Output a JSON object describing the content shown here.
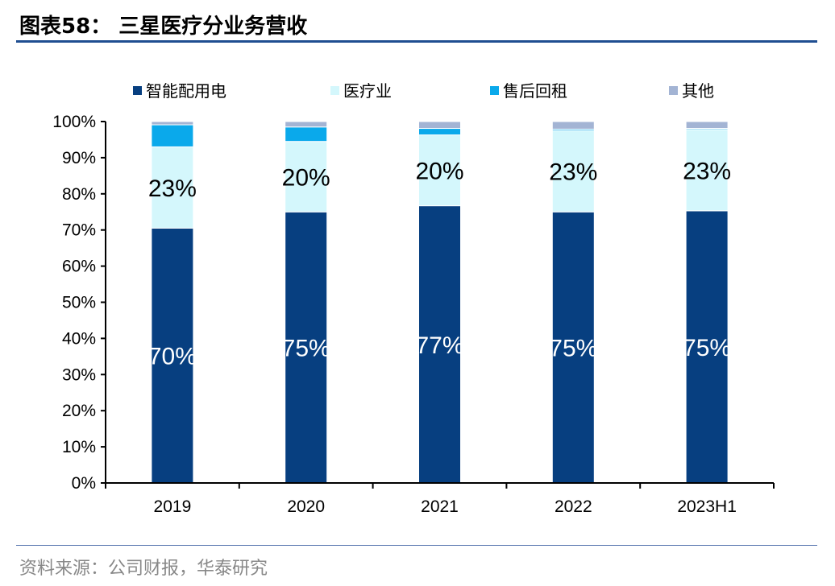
{
  "page": {
    "title": "图表58：  三星医疗分业务营收",
    "source": "资料来源：公司财报，华泰研究"
  },
  "chart_data": {
    "type": "bar",
    "stacked": true,
    "categories": [
      "2019",
      "2020",
      "2021",
      "2022",
      "2023H1"
    ],
    "series": [
      {
        "name": "智能配用电",
        "color": "#073f80",
        "values": [
          70.5,
          75,
          76.7,
          75,
          75.3
        ],
        "labels": [
          "70%",
          "75%",
          "77%",
          "75%",
          "75%"
        ],
        "label_color": "#ffffff"
      },
      {
        "name": "医疗业",
        "color": "#d4f7fc",
        "values": [
          22.5,
          19.5,
          19.6,
          22.5,
          22.5
        ],
        "labels": [
          "23%",
          "20%",
          "20%",
          "23%",
          "23%"
        ],
        "label_color": "#000000"
      },
      {
        "name": "售后回租",
        "color": "#0aa9eb",
        "values": [
          6.1,
          4,
          1.8,
          0.4,
          0.3
        ],
        "labels": [
          "",
          "",
          "",
          "",
          ""
        ]
      },
      {
        "name": "其他",
        "color": "#a3b4d4",
        "values": [
          0.9,
          1.5,
          1.9,
          2.1,
          1.9
        ],
        "labels": [
          "",
          "",
          "",
          "",
          ""
        ]
      }
    ],
    "y_ticks": [
      "0%",
      "10%",
      "20%",
      "30%",
      "40%",
      "50%",
      "60%",
      "70%",
      "80%",
      "90%",
      "100%"
    ],
    "ylim": [
      0,
      100
    ],
    "legend_position": "top",
    "grid": false
  }
}
